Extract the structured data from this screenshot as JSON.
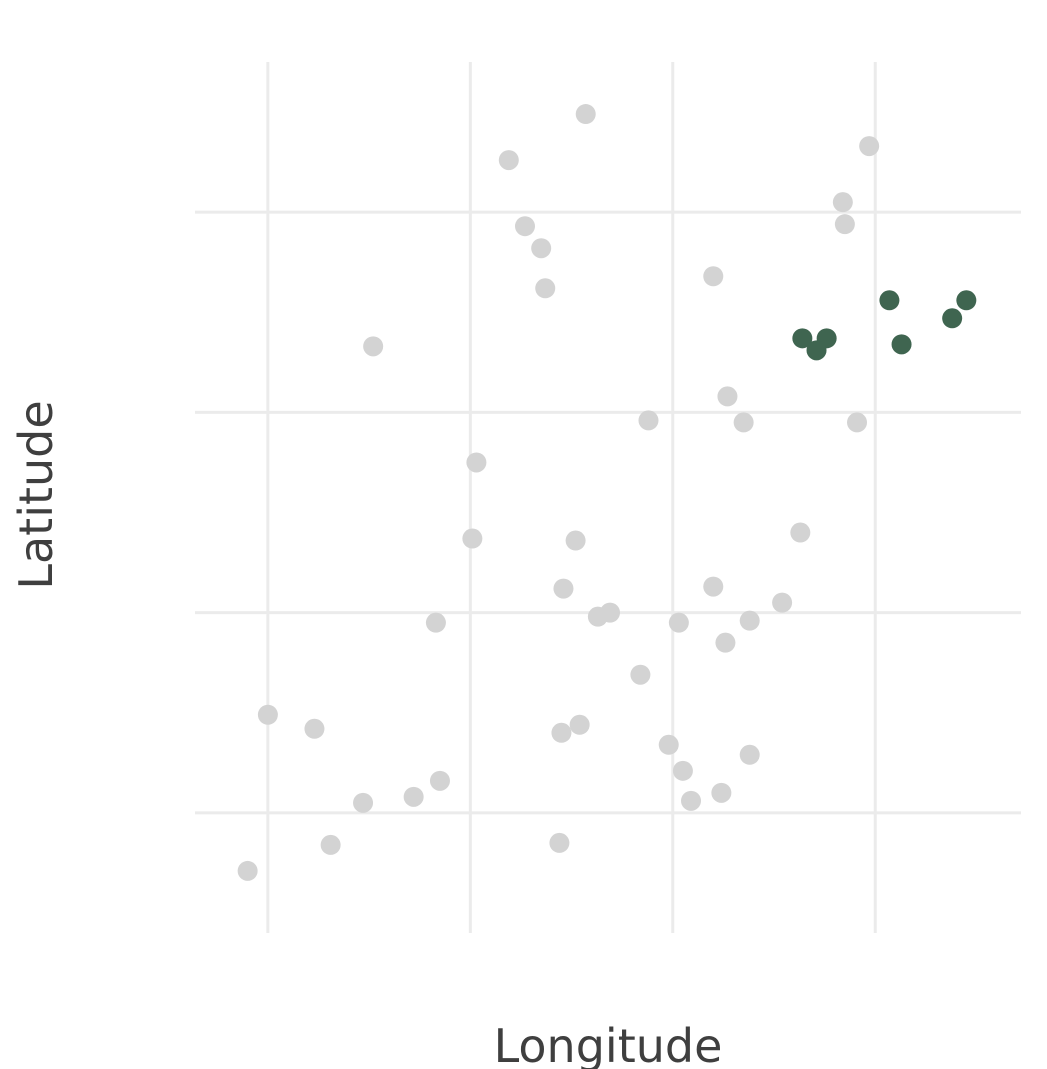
{
  "chart_data": {
    "type": "scatter",
    "title": "",
    "xlabel": "Longitude",
    "ylabel": "Latitude",
    "xlim": [
      -1.36,
      2.72
    ],
    "ylim": [
      -0.6,
      3.75
    ],
    "grid": true,
    "x_gridlines": [
      -1,
      0,
      1,
      2
    ],
    "y_gridlines": [
      0,
      1,
      2,
      3
    ],
    "tick_labels_visible": false,
    "colors": {
      "background": "#ffffff",
      "grid": "#ebebeb",
      "default_point": "#d3d3d3",
      "highlight_point": "#3f6550",
      "axis_text": "#3f3f3f"
    },
    "series": [
      {
        "color": "#d3d3d3",
        "points": [
          [
            0.57,
            3.49
          ],
          [
            0.19,
            3.26
          ],
          [
            0.27,
            2.93
          ],
          [
            0.35,
            2.82
          ],
          [
            0.37,
            2.62
          ],
          [
            -0.48,
            2.33
          ],
          [
            1.97,
            3.33
          ],
          [
            1.84,
            3.05
          ],
          [
            1.85,
            2.94
          ],
          [
            1.2,
            2.68
          ],
          [
            1.27,
            2.08
          ],
          [
            1.35,
            1.95
          ],
          [
            0.88,
            1.96
          ],
          [
            1.91,
            1.95
          ],
          [
            0.03,
            1.75
          ],
          [
            0.01,
            1.37
          ],
          [
            0.52,
            1.36
          ],
          [
            1.63,
            1.4
          ],
          [
            0.46,
            1.12
          ],
          [
            1.2,
            1.13
          ],
          [
            0.63,
            0.98
          ],
          [
            0.69,
            1.0
          ],
          [
            1.03,
            0.95
          ],
          [
            1.38,
            0.96
          ],
          [
            1.54,
            1.05
          ],
          [
            1.26,
            0.85
          ],
          [
            -0.17,
            0.95
          ],
          [
            0.84,
            0.69
          ],
          [
            -1.0,
            0.49
          ],
          [
            -0.77,
            0.42
          ],
          [
            0.45,
            0.4
          ],
          [
            0.54,
            0.44
          ],
          [
            0.98,
            0.34
          ],
          [
            1.38,
            0.29
          ],
          [
            1.05,
            0.21
          ],
          [
            -0.53,
            0.05
          ],
          [
            -0.28,
            0.08
          ],
          [
            -0.15,
            0.16
          ],
          [
            1.09,
            0.06
          ],
          [
            1.24,
            0.1
          ],
          [
            -0.69,
            -0.16
          ],
          [
            0.44,
            -0.15
          ],
          [
            -1.1,
            -0.29
          ]
        ]
      },
      {
        "color": "#3f6550",
        "points": [
          [
            2.07,
            2.56
          ],
          [
            2.45,
            2.56
          ],
          [
            2.38,
            2.47
          ],
          [
            1.64,
            2.37
          ],
          [
            1.76,
            2.37
          ],
          [
            1.71,
            2.31
          ],
          [
            2.13,
            2.34
          ]
        ]
      }
    ]
  }
}
